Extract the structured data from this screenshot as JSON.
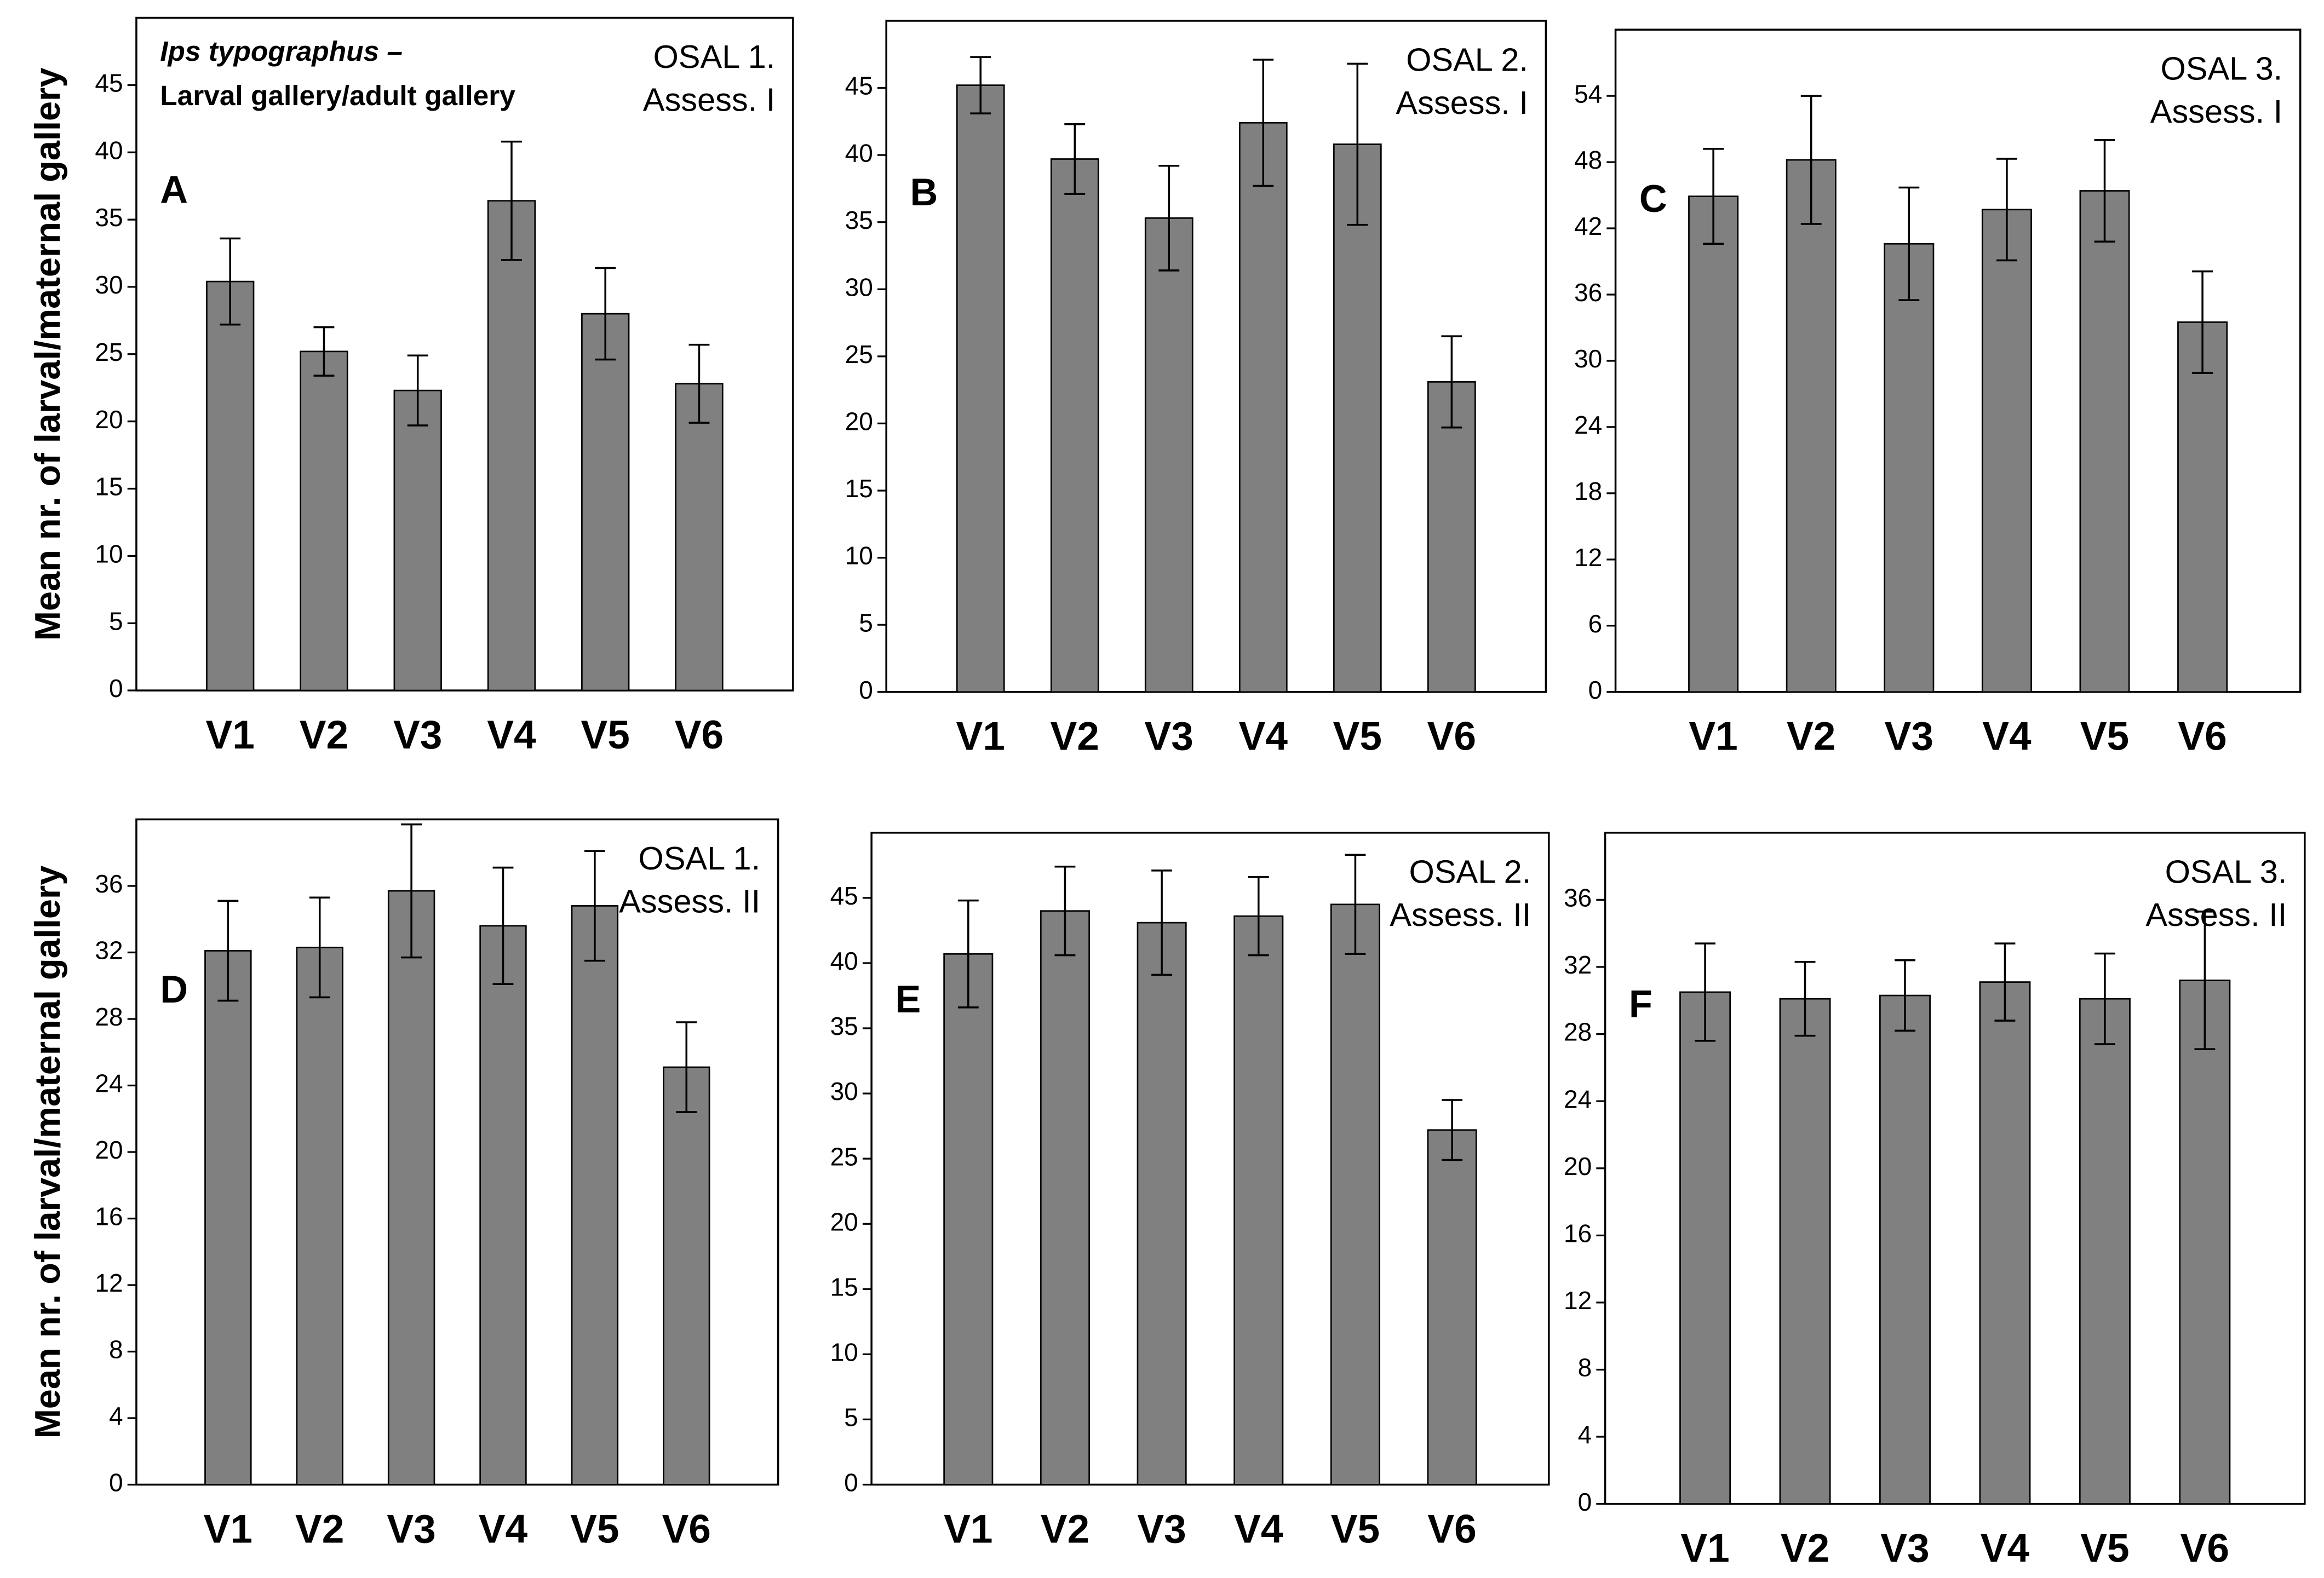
{
  "chart_data": [
    {
      "type": "bar",
      "panel_label": "A",
      "title": [
        "Ips typographus –",
        "Larval gallery/adult gallery"
      ],
      "annotation": [
        "OSAL 1.",
        "Assess. I"
      ],
      "ylabel": "Mean nr. of larval/maternal gallery",
      "categories": [
        "V1",
        "V2",
        "V3",
        "V4",
        "V5",
        "V6"
      ],
      "values": [
        30.4,
        25.2,
        22.3,
        36.4,
        28,
        22.8
      ],
      "errors": [
        3.2,
        1.8,
        2.6,
        4.4,
        3.4,
        2.9
      ],
      "color": "#808080",
      "ylim": [
        0,
        50
      ],
      "yticks": [
        0,
        5,
        10,
        15,
        20,
        25,
        30,
        35,
        40,
        45
      ]
    },
    {
      "type": "bar",
      "panel_label": "B",
      "annotation": [
        "OSAL 2.",
        "Assess. I"
      ],
      "categories": [
        "V1",
        "V2",
        "V3",
        "V4",
        "V5",
        "V6"
      ],
      "values": [
        45.2,
        39.7,
        35.3,
        42.4,
        40.8,
        23.1
      ],
      "errors": [
        2.1,
        2.6,
        3.9,
        4.7,
        6,
        3.4
      ],
      "color": "#808080",
      "ylim": [
        0,
        50
      ],
      "yticks": [
        0,
        5,
        10,
        15,
        20,
        25,
        30,
        35,
        40,
        45
      ]
    },
    {
      "type": "bar",
      "panel_label": "C",
      "annotation": [
        "OSAL 3.",
        "Assess. I"
      ],
      "categories": [
        "V1",
        "V2",
        "V3",
        "V4",
        "V5",
        "V6"
      ],
      "values": [
        44.9,
        48.2,
        40.6,
        43.7,
        45.4,
        33.5
      ],
      "errors": [
        4.3,
        5.8,
        5.1,
        4.6,
        4.6,
        4.6
      ],
      "color": "#808080",
      "ylim": [
        0,
        60
      ],
      "yticks": [
        0,
        6,
        12,
        18,
        24,
        30,
        36,
        42,
        48,
        54
      ]
    },
    {
      "type": "bar",
      "panel_label": "D",
      "annotation": [
        "OSAL 1.",
        "Assess. II"
      ],
      "ylabel": "Mean nr. of larval/maternal gallery",
      "categories": [
        "V1",
        "V2",
        "V3",
        "V4",
        "V5",
        "V6"
      ],
      "values": [
        32.1,
        32.3,
        35.7,
        33.6,
        34.8,
        25.1
      ],
      "errors": [
        3,
        3,
        4,
        3.5,
        3.3,
        2.7
      ],
      "color": "#808080",
      "ylim": [
        0,
        40
      ],
      "yticks": [
        0,
        4,
        8,
        12,
        16,
        20,
        24,
        28,
        32,
        36
      ]
    },
    {
      "type": "bar",
      "panel_label": "E",
      "annotation": [
        "OSAL 2.",
        "Assess. II"
      ],
      "categories": [
        "V1",
        "V2",
        "V3",
        "V4",
        "V5",
        "V6"
      ],
      "values": [
        40.7,
        44,
        43.1,
        43.6,
        44.5,
        27.2
      ],
      "errors": [
        4.1,
        3.4,
        4,
        3,
        3.8,
        2.3
      ],
      "color": "#808080",
      "ylim": [
        0,
        50
      ],
      "yticks": [
        0,
        5,
        10,
        15,
        20,
        25,
        30,
        35,
        40,
        45
      ]
    },
    {
      "type": "bar",
      "panel_label": "F",
      "annotation": [
        "OSAL 3.",
        "Assess. II"
      ],
      "categories": [
        "V1",
        "V2",
        "V3",
        "V4",
        "V5",
        "V6"
      ],
      "values": [
        30.5,
        30.1,
        30.3,
        31.1,
        30.1,
        31.2
      ],
      "errors": [
        2.9,
        2.2,
        2.1,
        2.3,
        2.7,
        4.1
      ],
      "color": "#808080",
      "ylim": [
        0,
        40
      ],
      "yticks": [
        0,
        4,
        8,
        12,
        16,
        20,
        24,
        28,
        32,
        36
      ]
    }
  ]
}
